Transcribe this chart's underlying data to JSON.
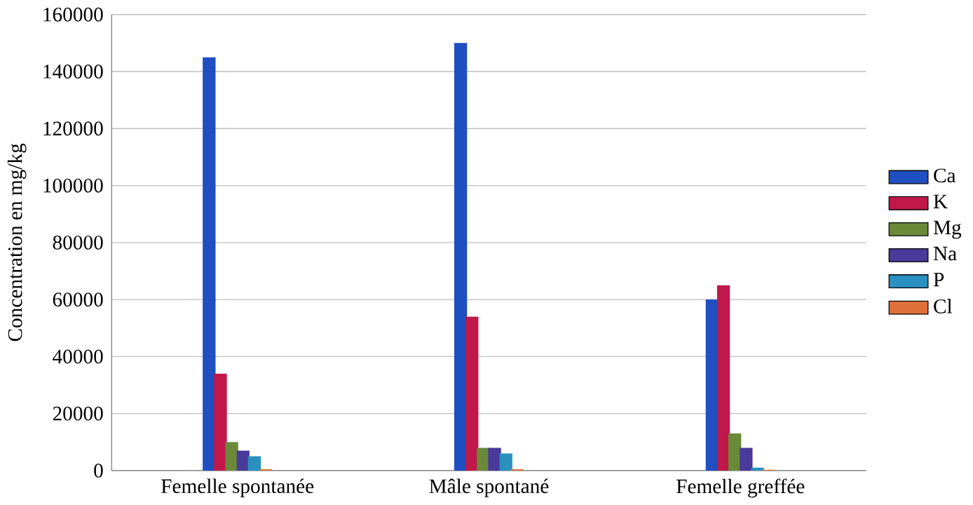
{
  "chart_data": {
    "type": "bar",
    "ylabel": "Concentration en mg/kg",
    "categories": [
      "Femelle spontanée",
      "Mâle spontané",
      "Femelle greffée"
    ],
    "series": [
      {
        "name": "Ca",
        "color": "#1f4fc0",
        "values": [
          145000,
          150000,
          60000
        ]
      },
      {
        "name": "K",
        "color": "#c0184a",
        "values": [
          34000,
          54000,
          65000
        ]
      },
      {
        "name": "Mg",
        "color": "#6a8a3a",
        "values": [
          10000,
          8000,
          13000
        ]
      },
      {
        "name": "Na",
        "color": "#4a3a9a",
        "values": [
          7000,
          8000,
          8000
        ]
      },
      {
        "name": "P",
        "color": "#2a90c0",
        "values": [
          5000,
          6000,
          1000
        ]
      },
      {
        "name": "Cl",
        "color": "#e0703a",
        "values": [
          500,
          500,
          300
        ]
      }
    ],
    "ylim": [
      0,
      160000
    ],
    "yticks": [
      0,
      20000,
      40000,
      60000,
      80000,
      100000,
      120000,
      140000,
      160000
    ],
    "grid": "y",
    "legend": "right"
  }
}
